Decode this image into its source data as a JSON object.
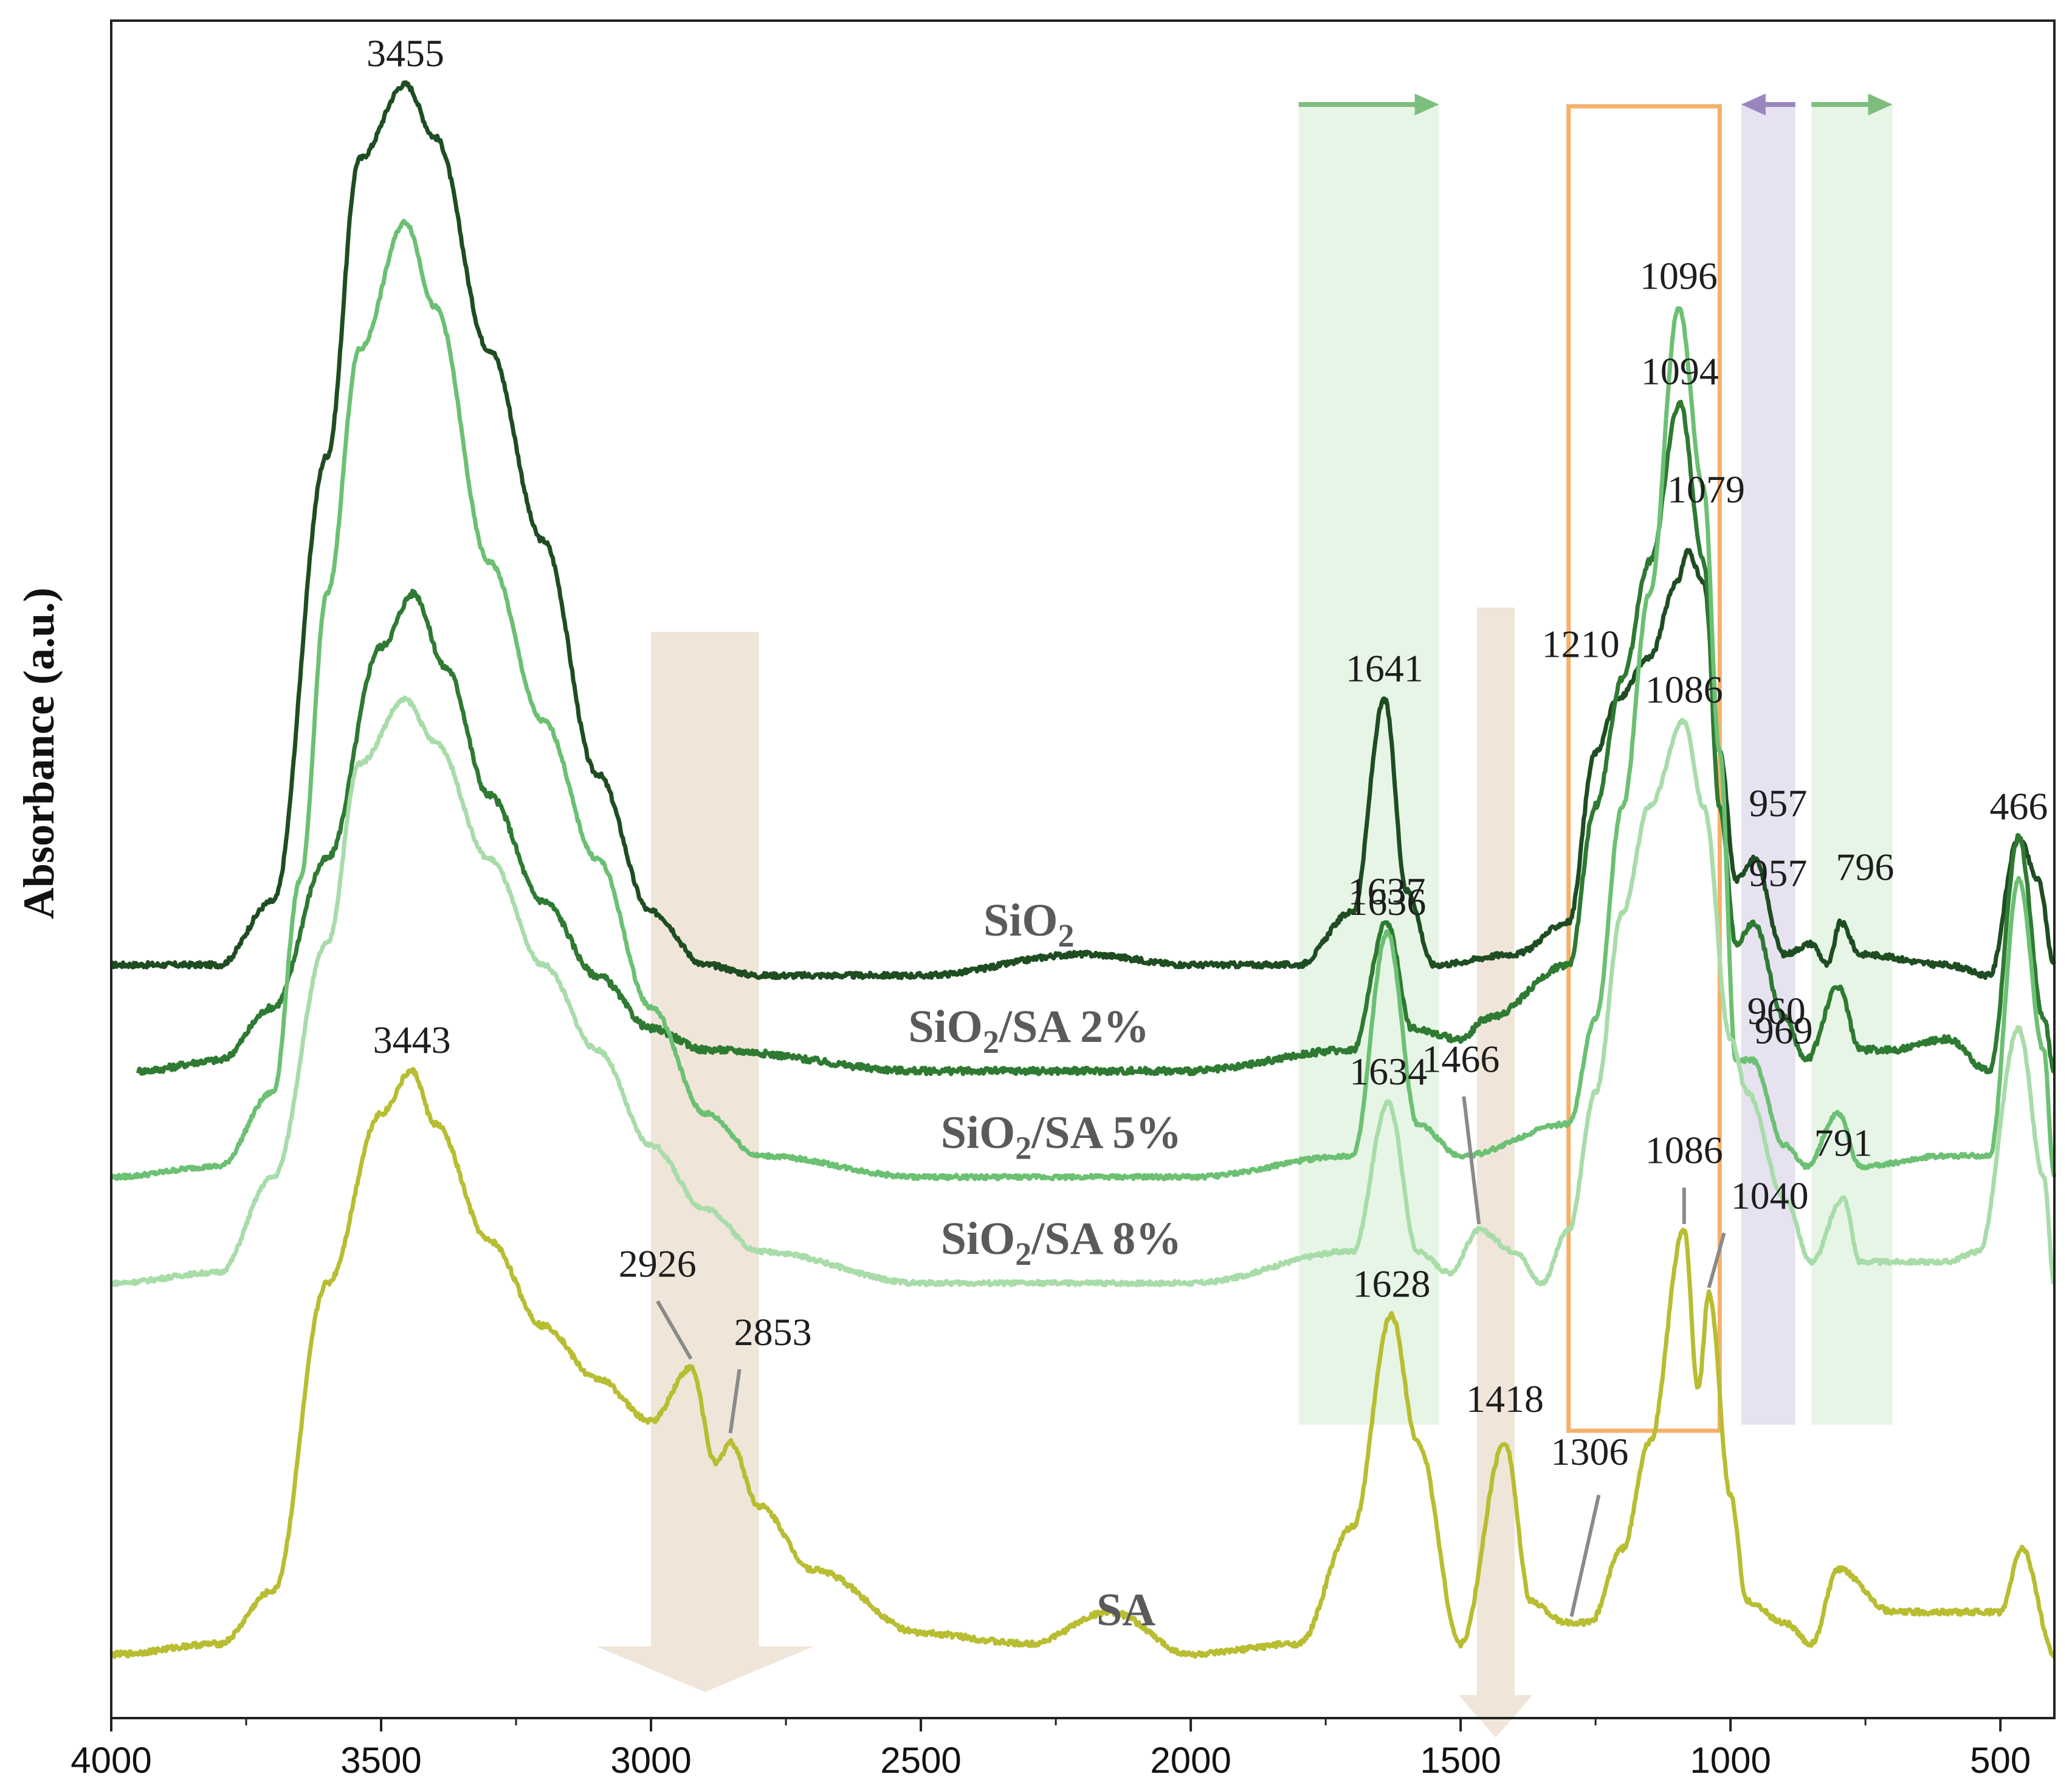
{
  "chart_data": {
    "type": "line",
    "title": "",
    "xlabel": "",
    "ylabel": "Absorbance (a.u.)",
    "xlim": [
      4000,
      400
    ],
    "x_reversed": true,
    "x_ticks": [
      4000,
      3500,
      3000,
      2500,
      2000,
      1500,
      1000,
      500
    ],
    "y_ticks_shown": false,
    "series": [
      {
        "name": "SiO2",
        "label": "SiO2",
        "label_main": "SiO",
        "label_sub": "2",
        "label_rest": "",
        "label_x": 2300,
        "color": "#1f4d22",
        "baseline_level": 0.1,
        "noise": 0.005,
        "points": [
          [
            4000,
            0.1
          ],
          [
            3800,
            0.1
          ],
          [
            3700,
            0.16
          ],
          [
            3600,
            0.58
          ],
          [
            3540,
            0.86
          ],
          [
            3455,
            0.93
          ],
          [
            3400,
            0.88
          ],
          [
            3300,
            0.68
          ],
          [
            3200,
            0.5
          ],
          [
            3100,
            0.28
          ],
          [
            3000,
            0.15
          ],
          [
            2900,
            0.1
          ],
          [
            2800,
            0.09
          ],
          [
            2500,
            0.09
          ],
          [
            2200,
            0.11
          ],
          [
            2000,
            0.1
          ],
          [
            1800,
            0.1
          ],
          [
            1700,
            0.15
          ],
          [
            1641,
            0.35
          ],
          [
            1600,
            0.17
          ],
          [
            1550,
            0.1
          ],
          [
            1400,
            0.11
          ],
          [
            1300,
            0.14
          ],
          [
            1250,
            0.3
          ],
          [
            1210,
            0.35
          ],
          [
            1150,
            0.39
          ],
          [
            1100,
            0.46
          ],
          [
            1079,
            0.49
          ],
          [
            1050,
            0.46
          ],
          [
            1020,
            0.3
          ],
          [
            990,
            0.18
          ],
          [
            957,
            0.2
          ],
          [
            900,
            0.11
          ],
          [
            850,
            0.12
          ],
          [
            820,
            0.1
          ],
          [
            796,
            0.14
          ],
          [
            760,
            0.11
          ],
          [
            600,
            0.1
          ],
          [
            520,
            0.09
          ],
          [
            466,
            0.22
          ],
          [
            430,
            0.18
          ],
          [
            400,
            0.1
          ]
        ],
        "peaks": [
          {
            "label": "3455",
            "x": 3455,
            "y": 0.93
          },
          {
            "label": "1641",
            "x": 1641,
            "y": 0.35
          },
          {
            "label": "1210",
            "x": 1210,
            "y": 0.35
          },
          {
            "label": "1079",
            "x": 1079,
            "y": 0.49
          },
          {
            "label": "957",
            "x": 957,
            "y": 0.2
          },
          {
            "label": "796",
            "x": 796,
            "y": 0.14
          },
          {
            "label": "466",
            "x": 466,
            "y": 0.22
          }
        ]
      },
      {
        "name": "SiO2/SA 2%",
        "label": "SiO2/SA 2%",
        "label_main": "SiO",
        "label_sub": "2",
        "label_rest": "/SA 2%",
        "label_x": 2300,
        "color": "#2e7a32",
        "baseline_level": 0.0,
        "noise": 0.006,
        "points": [
          [
            3950,
            0.0
          ],
          [
            3800,
            0.01
          ],
          [
            3700,
            0.06
          ],
          [
            3600,
            0.2
          ],
          [
            3500,
            0.4
          ],
          [
            3440,
            0.45
          ],
          [
            3380,
            0.38
          ],
          [
            3300,
            0.26
          ],
          [
            3200,
            0.16
          ],
          [
            3100,
            0.09
          ],
          [
            3000,
            0.04
          ],
          [
            2900,
            0.02
          ],
          [
            2500,
            0.0
          ],
          [
            2000,
            0.0
          ],
          [
            1700,
            0.02
          ],
          [
            1637,
            0.14
          ],
          [
            1590,
            0.04
          ],
          [
            1500,
            0.03
          ],
          [
            1450,
            0.05
          ],
          [
            1300,
            0.1
          ],
          [
            1250,
            0.25
          ],
          [
            1200,
            0.37
          ],
          [
            1150,
            0.48
          ],
          [
            1094,
            0.63
          ],
          [
            1050,
            0.48
          ],
          [
            1020,
            0.25
          ],
          [
            990,
            0.12
          ],
          [
            957,
            0.14
          ],
          [
            900,
            0.05
          ],
          [
            860,
            0.01
          ],
          [
            800,
            0.08
          ],
          [
            760,
            0.02
          ],
          [
            700,
            0.02
          ],
          [
            600,
            0.03
          ],
          [
            520,
            0.0
          ],
          [
            466,
            0.22
          ],
          [
            420,
            0.05
          ],
          [
            400,
            0.0
          ]
        ],
        "peaks": [
          {
            "label": "1637",
            "x": 1637,
            "y": 0.14
          },
          {
            "label": "1094",
            "x": 1094,
            "y": 0.63
          },
          {
            "label": "957",
            "x": 957,
            "y": 0.14
          }
        ]
      },
      {
        "name": "SiO2/SA 5%",
        "label": "SiO2/SA 5%",
        "label_main": "SiO",
        "label_sub": "2",
        "label_rest": "/SA 5%",
        "label_x": 2240,
        "color": "#6cc073",
        "baseline_level": -0.1,
        "noise": 0.004,
        "points": [
          [
            4000,
            -0.1
          ],
          [
            3800,
            -0.09
          ],
          [
            3700,
            -0.02
          ],
          [
            3650,
            0.18
          ],
          [
            3600,
            0.45
          ],
          [
            3540,
            0.68
          ],
          [
            3455,
            0.8
          ],
          [
            3400,
            0.72
          ],
          [
            3300,
            0.48
          ],
          [
            3200,
            0.33
          ],
          [
            3100,
            0.2
          ],
          [
            3000,
            0.06
          ],
          [
            2900,
            -0.04
          ],
          [
            2800,
            -0.08
          ],
          [
            2500,
            -0.1
          ],
          [
            2000,
            -0.1
          ],
          [
            1700,
            -0.08
          ],
          [
            1636,
            0.13
          ],
          [
            1580,
            -0.05
          ],
          [
            1500,
            -0.08
          ],
          [
            1300,
            -0.05
          ],
          [
            1250,
            0.05
          ],
          [
            1200,
            0.25
          ],
          [
            1150,
            0.45
          ],
          [
            1096,
            0.72
          ],
          [
            1050,
            0.55
          ],
          [
            1020,
            0.3
          ],
          [
            990,
            0.01
          ],
          [
            960,
            0.01
          ],
          [
            900,
            -0.07
          ],
          [
            860,
            -0.09
          ],
          [
            800,
            -0.04
          ],
          [
            760,
            -0.09
          ],
          [
            600,
            -0.08
          ],
          [
            520,
            -0.08
          ],
          [
            466,
            0.18
          ],
          [
            420,
            0.02
          ],
          [
            400,
            -0.1
          ]
        ],
        "peaks": [
          {
            "label": "1636",
            "x": 1636,
            "y": 0.13
          },
          {
            "label": "1096",
            "x": 1096,
            "y": 0.72
          },
          {
            "label": "960",
            "x": 960,
            "y": 0.01
          }
        ]
      },
      {
        "name": "SiO2/SA 8%",
        "label": "SiO2/SA 8%",
        "label_main": "SiO",
        "label_sub": "2",
        "label_rest": "/SA 8%",
        "label_x": 2240,
        "color": "#a8dca9",
        "baseline_level": -0.2,
        "noise": 0.004,
        "points": [
          [
            4000,
            -0.2
          ],
          [
            3800,
            -0.19
          ],
          [
            3700,
            -0.1
          ],
          [
            3600,
            0.12
          ],
          [
            3540,
            0.29
          ],
          [
            3455,
            0.35
          ],
          [
            3400,
            0.31
          ],
          [
            3300,
            0.2
          ],
          [
            3200,
            0.1
          ],
          [
            3100,
            0.02
          ],
          [
            3000,
            -0.07
          ],
          [
            2900,
            -0.13
          ],
          [
            2800,
            -0.17
          ],
          [
            2500,
            -0.2
          ],
          [
            2000,
            -0.2
          ],
          [
            1700,
            -0.17
          ],
          [
            1634,
            -0.03
          ],
          [
            1580,
            -0.17
          ],
          [
            1520,
            -0.19
          ],
          [
            1466,
            -0.15
          ],
          [
            1400,
            -0.17
          ],
          [
            1350,
            -0.2
          ],
          [
            1300,
            -0.15
          ],
          [
            1250,
            -0.02
          ],
          [
            1200,
            0.15
          ],
          [
            1150,
            0.25
          ],
          [
            1086,
            0.33
          ],
          [
            1050,
            0.25
          ],
          [
            1000,
            0.03
          ],
          [
            969,
            -0.02
          ],
          [
            900,
            -0.12
          ],
          [
            850,
            -0.18
          ],
          [
            791,
            -0.12
          ],
          [
            760,
            -0.18
          ],
          [
            650,
            -0.18
          ],
          [
            600,
            -0.18
          ],
          [
            540,
            -0.17
          ],
          [
            466,
            0.04
          ],
          [
            420,
            -0.1
          ],
          [
            400,
            -0.2
          ]
        ],
        "peaks": [
          {
            "label": "1466",
            "x": 1466,
            "y": -0.15
          },
          {
            "label": "1634",
            "x": 1634,
            "y": -0.03
          },
          {
            "label": "1086",
            "x": 1086,
            "y": 0.33
          },
          {
            "label": "969",
            "x": 969,
            "y": -0.02
          },
          {
            "label": "791",
            "x": 791,
            "y": -0.12
          }
        ]
      },
      {
        "name": "SA",
        "label": "SA",
        "label_main": "SA",
        "label_sub": "",
        "label_rest": "",
        "label_x": 2120,
        "color": "#b8bd31",
        "baseline_level": -0.55,
        "noise": 0.005,
        "points": [
          [
            4000,
            -0.55
          ],
          [
            3800,
            -0.54
          ],
          [
            3700,
            -0.49
          ],
          [
            3600,
            -0.2
          ],
          [
            3500,
            -0.04
          ],
          [
            3443,
            0.0
          ],
          [
            3400,
            -0.05
          ],
          [
            3300,
            -0.16
          ],
          [
            3200,
            -0.24
          ],
          [
            3100,
            -0.29
          ],
          [
            3000,
            -0.33
          ],
          [
            2926,
            -0.28
          ],
          [
            2880,
            -0.37
          ],
          [
            2853,
            -0.35
          ],
          [
            2800,
            -0.41
          ],
          [
            2700,
            -0.47
          ],
          [
            2500,
            -0.53
          ],
          [
            2300,
            -0.54
          ],
          [
            2150,
            -0.51
          ],
          [
            2000,
            -0.55
          ],
          [
            1800,
            -0.54
          ],
          [
            1700,
            -0.43
          ],
          [
            1628,
            -0.23
          ],
          [
            1580,
            -0.35
          ],
          [
            1500,
            -0.54
          ],
          [
            1418,
            -0.35
          ],
          [
            1370,
            -0.5
          ],
          [
            1306,
            -0.52
          ],
          [
            1260,
            -0.52
          ],
          [
            1200,
            -0.45
          ],
          [
            1150,
            -0.35
          ],
          [
            1086,
            -0.15
          ],
          [
            1060,
            -0.3
          ],
          [
            1040,
            -0.21
          ],
          [
            1000,
            -0.4
          ],
          [
            970,
            -0.5
          ],
          [
            900,
            -0.52
          ],
          [
            850,
            -0.54
          ],
          [
            800,
            -0.47
          ],
          [
            700,
            -0.51
          ],
          [
            500,
            -0.51
          ],
          [
            460,
            -0.45
          ],
          [
            400,
            -0.55
          ]
        ],
        "peaks": [
          {
            "label": "3443",
            "x": 3443,
            "y": 0.0
          },
          {
            "label": "2926",
            "x": 2926,
            "y": -0.28
          },
          {
            "label": "2853",
            "x": 2853,
            "y": -0.35
          },
          {
            "label": "1628",
            "x": 1628,
            "y": -0.23
          },
          {
            "label": "1418",
            "x": 1418,
            "y": -0.35
          },
          {
            "label": "1306",
            "x": 1306,
            "y": -0.52
          },
          {
            "label": "1086",
            "x": 1086,
            "y": -0.15
          },
          {
            "label": "1040",
            "x": 1040,
            "y": -0.21
          }
        ]
      }
    ],
    "highlight_bands": [
      {
        "name": "green-band-left",
        "x_range": [
          1800,
          1540
        ],
        "color": "#d3ecd1"
      },
      {
        "name": "orange-box",
        "x_range": [
          1300,
          1020
        ],
        "color": "#f5b06a"
      },
      {
        "name": "purple-band",
        "x_range": [
          980,
          880
        ],
        "color": "#d2cbe4"
      },
      {
        "name": "green-band-right",
        "x_range": [
          850,
          700
        ],
        "color": "#d3ecd1"
      }
    ],
    "shift_arrows": [
      {
        "name": "green-arrow-left",
        "from": 1800,
        "to": 1540,
        "color": "#7dbd7d"
      },
      {
        "name": "purple-arrow",
        "from": 880,
        "to": 980,
        "color": "#9a86bf"
      },
      {
        "name": "green-arrow-right",
        "from": 850,
        "to": 700,
        "color": "#7dbd7d"
      }
    ],
    "wide_arrows": [
      {
        "name": "beige-arrow-ch",
        "x_range": [
          3000,
          2800
        ],
        "color": "#ede1d2"
      },
      {
        "name": "beige-arrow-coo",
        "x_range": [
          1470,
          1400
        ],
        "color": "#ede1d2"
      }
    ]
  }
}
